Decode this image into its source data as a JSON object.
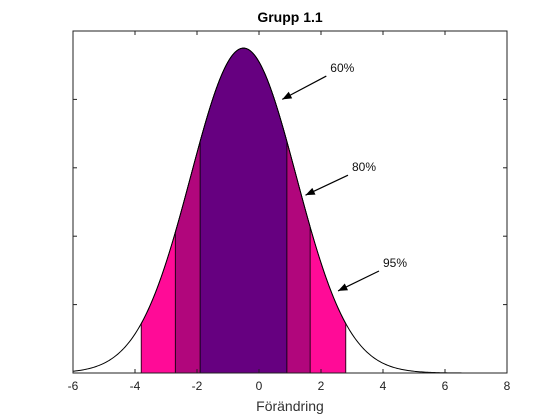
{
  "chart_data": {
    "type": "area",
    "title": "Grupp 1.1",
    "xlabel": "Förändring",
    "ylabel": "",
    "xlim": [
      -6,
      8
    ],
    "ylim": [
      0,
      1
    ],
    "x_ticks": [
      "-6",
      "-4",
      "-2",
      "0",
      "2",
      "4",
      "6",
      "8"
    ],
    "grid": false,
    "distribution": {
      "kind": "normal",
      "mean": -0.5,
      "sd": 1.7
    },
    "bands": [
      {
        "label": "95%",
        "x_range": [
          -3.8,
          2.8
        ],
        "color": "#ff0b97"
      },
      {
        "label": "80%",
        "x_range": [
          -2.7,
          1.65
        ],
        "color": "#b1067c"
      },
      {
        "label": "60%",
        "x_range": [
          -1.9,
          0.9
        ],
        "color": "#660080"
      }
    ],
    "annotations": [
      {
        "text": "60%",
        "x": 2.3,
        "y": 0.88,
        "arrow_to": [
          0.75,
          0.8
        ]
      },
      {
        "text": "80%",
        "x": 3.0,
        "y": 0.59,
        "arrow_to": [
          1.5,
          0.52
        ]
      },
      {
        "text": "95%",
        "x": 4.0,
        "y": 0.31,
        "arrow_to": [
          2.55,
          0.24
        ]
      }
    ]
  }
}
